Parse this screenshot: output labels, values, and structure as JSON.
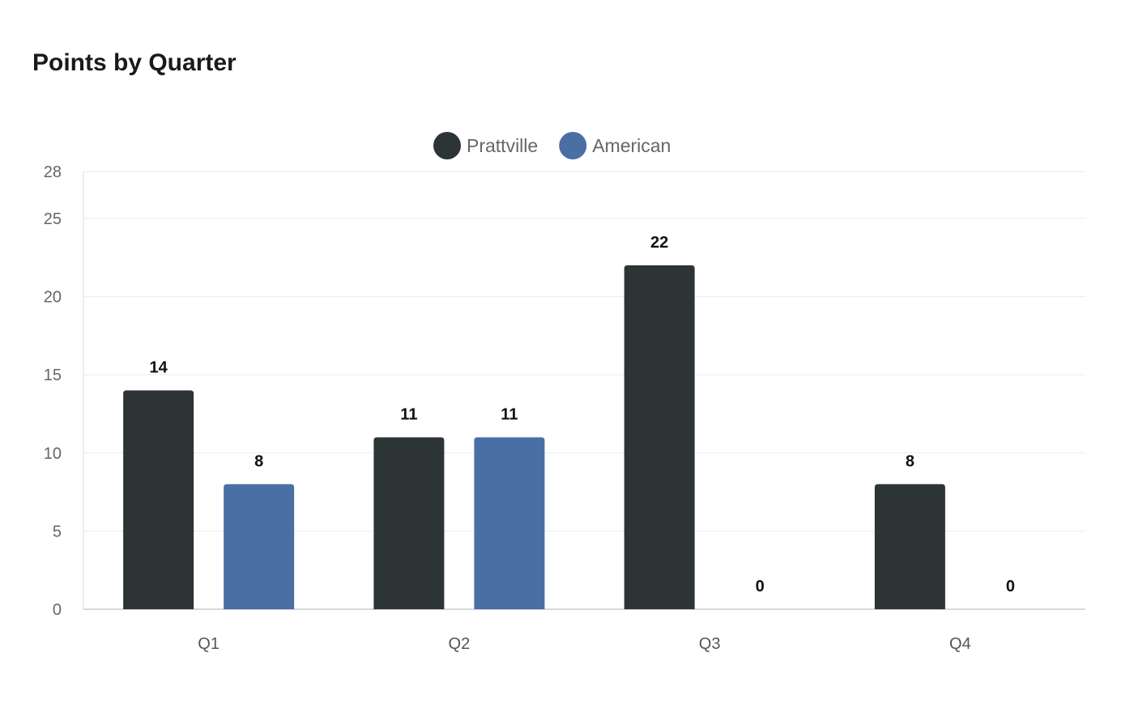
{
  "chart_data": {
    "type": "bar",
    "title": "Points by Quarter",
    "categories": [
      "Q1",
      "Q2",
      "Q3",
      "Q4"
    ],
    "series": [
      {
        "name": "Prattville",
        "color": "#2c3436",
        "values": [
          14,
          11,
          22,
          8
        ]
      },
      {
        "name": "American",
        "color": "#4a6fa5",
        "values": [
          8,
          11,
          0,
          0
        ]
      }
    ],
    "yticks": [
      0,
      5,
      10,
      15,
      20,
      25,
      28
    ],
    "ylim": [
      0,
      28
    ],
    "xlabel": "",
    "ylabel": "",
    "grid": true,
    "legend": "top-center",
    "data_labels": true
  }
}
